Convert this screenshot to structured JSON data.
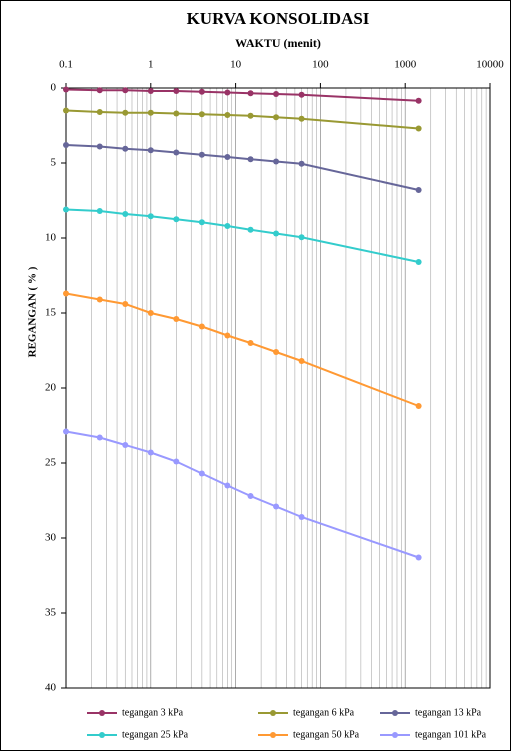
{
  "chart_data": {
    "type": "line",
    "title": "KURVA KONSOLIDASI",
    "x_label": "WAKTU  (menit)",
    "y_label": "REGANGAN ( % )",
    "x": [
      0.1,
      0.25,
      0.5,
      1,
      2,
      4,
      8,
      15,
      30,
      60,
      1440
    ],
    "x_log": true,
    "y_inverted": true,
    "xlim": [
      0.1,
      10000
    ],
    "xticks": [
      0.1,
      1,
      10,
      100,
      1000,
      10000
    ],
    "ylim": [
      0,
      40
    ],
    "yticks": [
      0,
      5,
      10,
      15,
      20,
      25,
      30,
      35,
      40
    ],
    "grid": true,
    "legend": "bottom",
    "series": [
      {
        "name": "tegangan 3 kPa",
        "color": "#993366",
        "values": [
          0.1,
          0.15,
          0.15,
          0.2,
          0.2,
          0.25,
          0.3,
          0.35,
          0.4,
          0.45,
          0.85
        ]
      },
      {
        "name": "tegangan 6 kPa",
        "color": "#999933",
        "values": [
          1.5,
          1.6,
          1.65,
          1.65,
          1.7,
          1.75,
          1.8,
          1.85,
          1.95,
          2.05,
          2.7
        ]
      },
      {
        "name": "tegangan 13 kPa",
        "color": "#666699",
        "values": [
          3.8,
          3.9,
          4.05,
          4.15,
          4.3,
          4.45,
          4.6,
          4.75,
          4.9,
          5.05,
          6.8
        ]
      },
      {
        "name": "tegangan 25 kPa",
        "color": "#33cccc",
        "values": [
          8.1,
          8.2,
          8.4,
          8.55,
          8.75,
          8.95,
          9.2,
          9.45,
          9.7,
          9.95,
          11.6
        ]
      },
      {
        "name": "tegangan 50 kPa",
        "color": "#ff9933",
        "values": [
          13.7,
          14.1,
          14.4,
          15.0,
          15.4,
          15.9,
          16.5,
          17.0,
          17.6,
          18.2,
          21.2
        ]
      },
      {
        "name": "tegangan 101 kPa",
        "color": "#9999ff",
        "values": [
          22.9,
          23.3,
          23.8,
          24.3,
          24.9,
          25.7,
          26.5,
          27.2,
          27.9,
          28.6,
          31.3
        ]
      }
    ]
  }
}
